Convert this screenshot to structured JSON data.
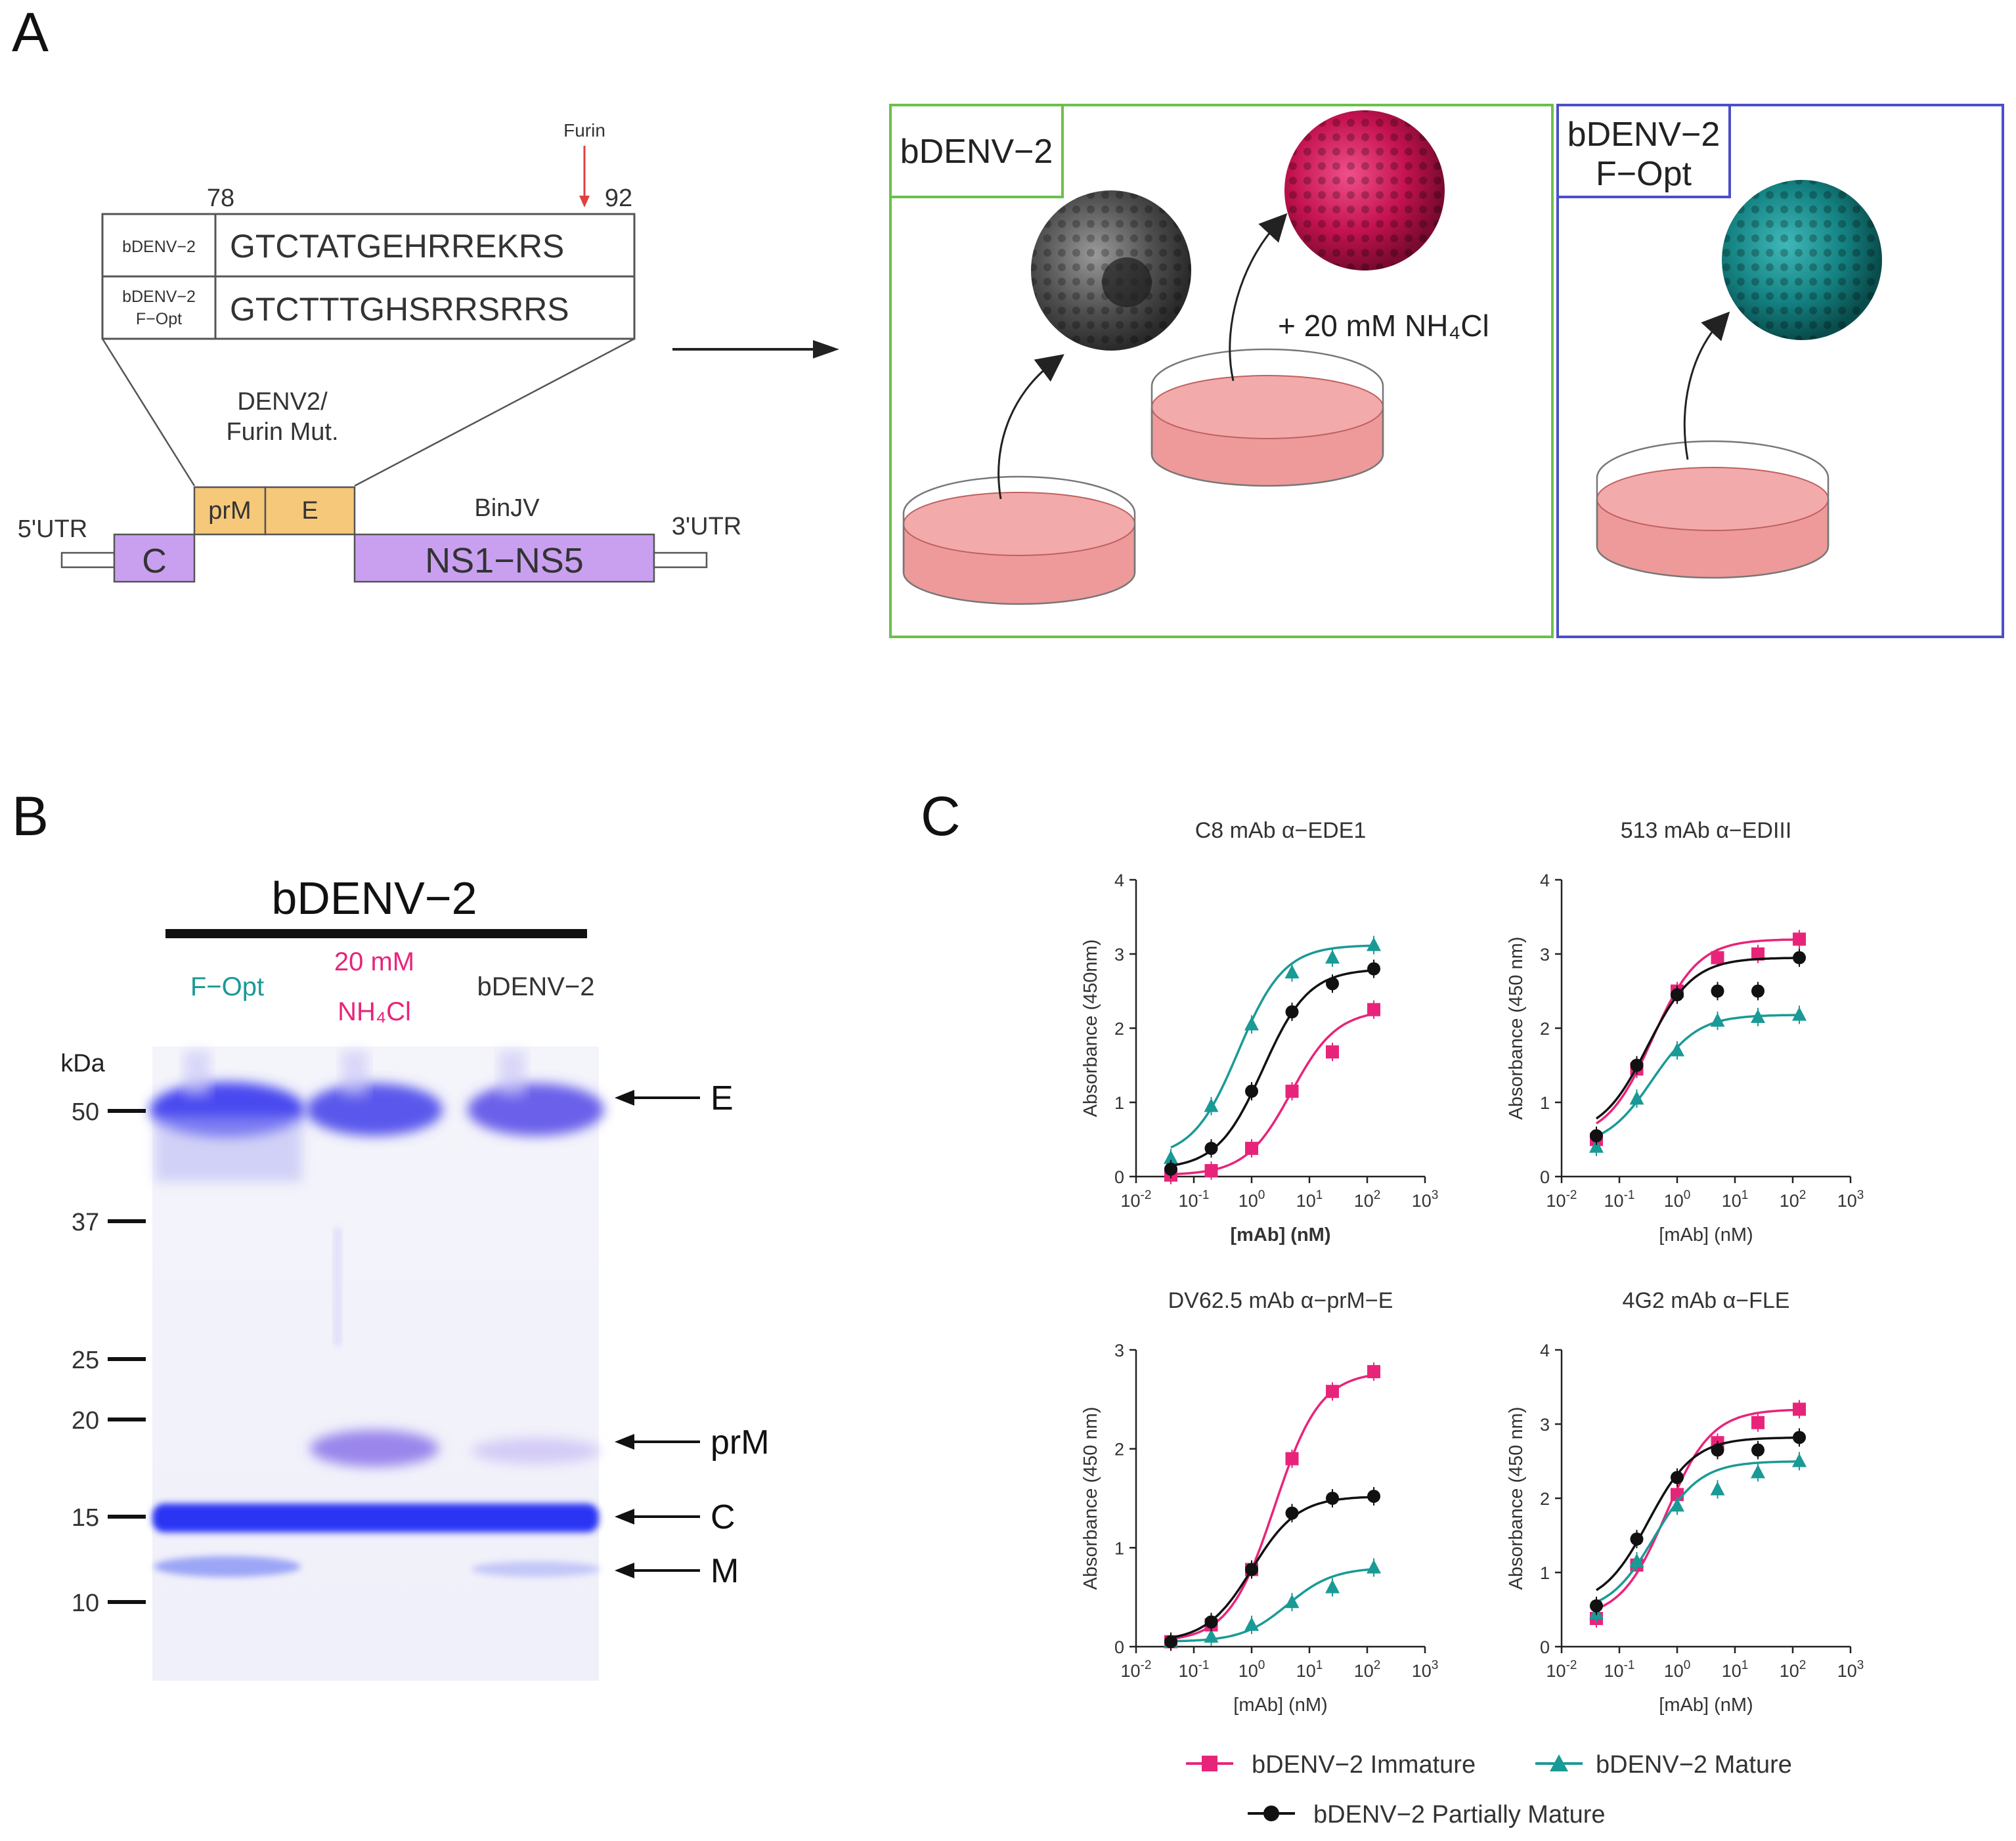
{
  "panels": {
    "a": "A",
    "b": "B",
    "c": "C"
  },
  "panel_a": {
    "furin_label": "Furin",
    "pos_start": "78",
    "pos_end": "92",
    "sequences": [
      {
        "name_line1": "bDENV−2",
        "name_line2": "",
        "seq": "GTCTATGEHRREKRS"
      },
      {
        "name_line1": "bDENV−2",
        "name_line2": "F−Opt",
        "seq": "GTCTTTGHSRRSRRS"
      }
    ],
    "construct": {
      "insert_label_line1": "DENV2/",
      "insert_label_line2": "Furin Mut.",
      "prm": "prM",
      "e": "E",
      "binjv": "BinJV",
      "utr5": "5'UTR",
      "c": "C",
      "ns": "NS1−NS5",
      "utr3": "3'UTR"
    },
    "box_bdenv2": "bDENV−2",
    "nh4cl_label": "+ 20 mM NH₄Cl",
    "box_fopt_line1": "bDENV−2",
    "box_fopt_line2": "F−Opt"
  },
  "panel_b": {
    "header": "bDENV−2",
    "lanes": [
      {
        "line1": "F−Opt",
        "line2": "",
        "color": "#1a9a96"
      },
      {
        "line1": "20 mM",
        "line2": "NH₄Cl",
        "color": "#e8247a"
      },
      {
        "line1": "bDENV−2",
        "line2": "",
        "color": "#333333"
      }
    ],
    "kda_label": "kDa",
    "markers": [
      "50",
      "37",
      "25",
      "20",
      "15",
      "10"
    ],
    "bands": [
      "E",
      "prM",
      "C",
      "M"
    ]
  },
  "chart_data": [
    {
      "type": "line",
      "title": "C8 mAb α−EDE1",
      "xlabel": "[mAb] (nM)",
      "ylabel": "Absorbance (450nm)",
      "xscale": "log",
      "xlim": [
        0.01,
        1000
      ],
      "ylim": [
        0,
        4
      ],
      "yticks": [
        "0",
        "1",
        "2",
        "3",
        "4"
      ],
      "x": [
        0.04,
        0.2,
        1,
        5,
        25,
        130
      ],
      "series": [
        {
          "name": "bDENV−2 Immature",
          "values": [
            0.02,
            0.08,
            0.38,
            1.15,
            1.68,
            2.25
          ]
        },
        {
          "name": "bDENV−2 Mature",
          "values": [
            0.25,
            0.95,
            2.05,
            2.75,
            2.95,
            3.12
          ]
        },
        {
          "name": "bDENV−2 Partially Mature",
          "values": [
            0.1,
            0.38,
            1.15,
            2.22,
            2.6,
            2.8
          ]
        }
      ]
    },
    {
      "type": "line",
      "title": "513 mAb α−EDIII",
      "xlabel": "[mAb] (nM)",
      "ylabel": "Absorbance (450 nm)",
      "xscale": "log",
      "xlim": [
        0.01,
        1000
      ],
      "ylim": [
        0,
        4
      ],
      "yticks": [
        "0",
        "1",
        "2",
        "3",
        "4"
      ],
      "x": [
        0.04,
        0.2,
        1,
        5,
        25,
        130
      ],
      "series": [
        {
          "name": "bDENV−2 Immature",
          "values": [
            0.5,
            1.45,
            2.5,
            2.95,
            3.0,
            3.2
          ]
        },
        {
          "name": "bDENV−2 Mature",
          "values": [
            0.4,
            1.05,
            1.7,
            2.1,
            2.15,
            2.18
          ]
        },
        {
          "name": "bDENV−2 Partially Mature",
          "values": [
            0.55,
            1.5,
            2.45,
            2.5,
            2.5,
            2.95
          ]
        }
      ]
    },
    {
      "type": "line",
      "title": "DV62.5 mAb α−prM−E",
      "xlabel": "[mAb] (nM)",
      "ylabel": "Absorbance (450 nm)",
      "xscale": "log",
      "xlim": [
        0.01,
        1000
      ],
      "ylim": [
        0,
        3
      ],
      "yticks": [
        "0",
        "1",
        "2",
        "3"
      ],
      "x": [
        0.04,
        0.2,
        1,
        5,
        25,
        130
      ],
      "series": [
        {
          "name": "bDENV−2 Immature",
          "values": [
            0.05,
            0.22,
            0.78,
            1.9,
            2.58,
            2.78
          ]
        },
        {
          "name": "bDENV−2 Mature",
          "values": [
            0.05,
            0.1,
            0.22,
            0.45,
            0.6,
            0.8
          ]
        },
        {
          "name": "bDENV−2 Partially Mature",
          "values": [
            0.05,
            0.25,
            0.78,
            1.35,
            1.5,
            1.52
          ]
        }
      ]
    },
    {
      "type": "line",
      "title": "4G2 mAb α−FLE",
      "xlabel": "[mAb] (nM)",
      "ylabel": "Absorbance (450 nm)",
      "xscale": "log",
      "xlim": [
        0.01,
        1000
      ],
      "ylim": [
        0,
        4
      ],
      "yticks": [
        "0",
        "1",
        "2",
        "3",
        "4"
      ],
      "x": [
        0.04,
        0.2,
        1,
        5,
        25,
        130
      ],
      "series": [
        {
          "name": "bDENV−2 Immature",
          "values": [
            0.38,
            1.1,
            2.05,
            2.75,
            3.02,
            3.2
          ]
        },
        {
          "name": "bDENV−2 Mature",
          "values": [
            0.45,
            1.15,
            1.9,
            2.12,
            2.35,
            2.5
          ]
        },
        {
          "name": "bDENV−2 Partially Mature",
          "values": [
            0.55,
            1.45,
            2.28,
            2.65,
            2.65,
            2.82
          ]
        }
      ]
    }
  ],
  "xtick_exponents": [
    "-2",
    "-1",
    "0",
    "1",
    "2",
    "3"
  ],
  "legend": [
    {
      "label": "bDENV−2 Immature",
      "color": "#e8247a"
    },
    {
      "label": "bDENV−2 Mature",
      "color": "#1a9a96"
    },
    {
      "label": "bDENV−2 Partially Mature",
      "color": "#111111"
    }
  ],
  "colors": {
    "immature": "#e8247a",
    "mature": "#1a9a96",
    "partial": "#111111",
    "green_box": "#6cc04a",
    "blue_box": "#4b4fc8",
    "purple": "#c9a0f0",
    "orange": "#f5c87a",
    "dish": "#ee9a9a"
  }
}
